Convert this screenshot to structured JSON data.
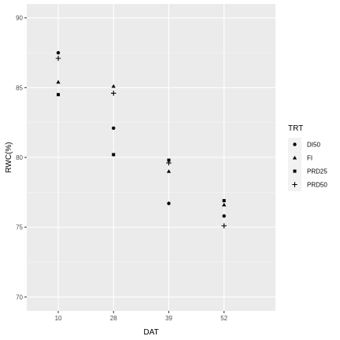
{
  "chart_data": {
    "type": "scatter",
    "title": "",
    "xlabel": "DAT",
    "ylabel": "RWC(%)",
    "categories": [
      "10",
      "28",
      "39",
      "52"
    ],
    "ylim": [
      69,
      91
    ],
    "yticks": [
      70,
      75,
      80,
      85,
      90
    ],
    "grid": true,
    "legend_title": "TRT",
    "legend_position": "right",
    "series": [
      {
        "name": "DI50",
        "marker": "circle",
        "values": [
          87.5,
          82.1,
          76.7,
          75.8
        ]
      },
      {
        "name": "FI",
        "marker": "triangle",
        "values": [
          85.4,
          85.1,
          79.0,
          76.6
        ]
      },
      {
        "name": "PRD25",
        "marker": "square",
        "values": [
          84.5,
          80.2,
          79.8,
          76.9
        ]
      },
      {
        "name": "PRD50",
        "marker": "plus",
        "values": [
          87.1,
          84.6,
          79.6,
          75.1
        ]
      }
    ],
    "colors": {
      "panel_background": "#ebebeb",
      "grid_major": "#ffffff",
      "grid_minor": "#f5f5f5",
      "point": "#000000",
      "legend_key_background": "#f2f2f2"
    }
  }
}
